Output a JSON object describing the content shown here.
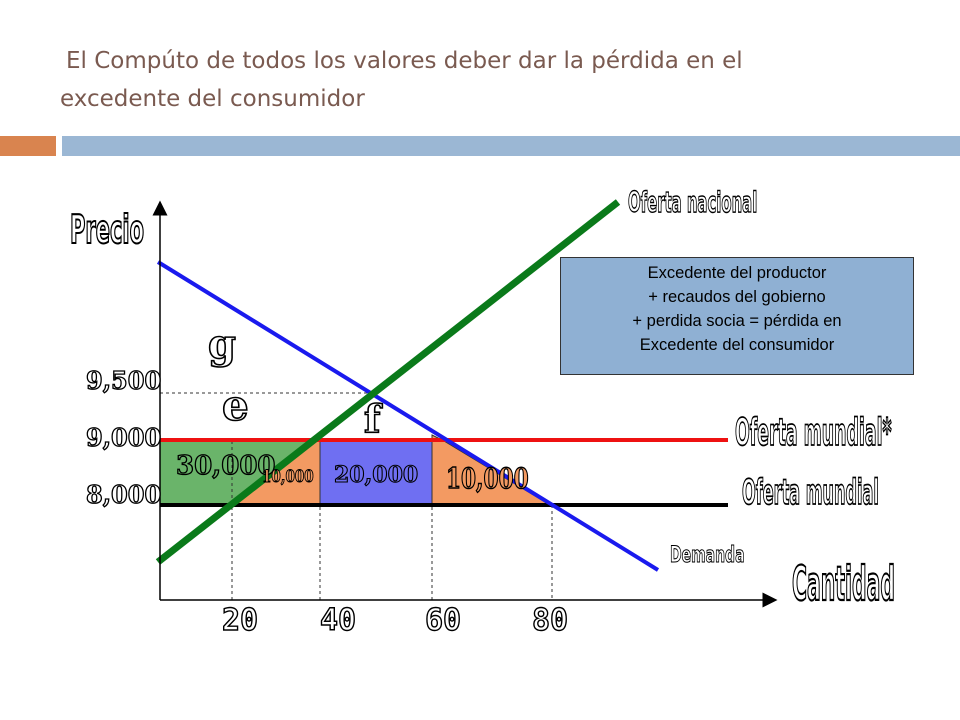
{
  "slide": {
    "title_line1": "El Compúto de  todos los valores deber dar la pérdida en el",
    "title_line2": "excedente del consumidor",
    "accent_colors": {
      "orange": "#d9844f",
      "blue": "#9bb7d4"
    }
  },
  "diagram": {
    "y_axis_label": "Precio",
    "x_axis_label": "Cantidad",
    "price_labels": [
      "9,500",
      "9,000",
      "8,000"
    ],
    "quantity_labels": [
      "20",
      "40",
      "60",
      "80"
    ],
    "curve_labels": {
      "supply_national": "Oferta nacional",
      "world_supply_tariff": "Oferta mundial*",
      "world_supply": "Oferta mundial",
      "demand": "Demanda"
    },
    "area_letters": [
      "g",
      "e",
      "f"
    ],
    "area_values": {
      "green": "30,000",
      "orange_left": "10,000",
      "blue": "20,000",
      "orange_right": "10,000"
    },
    "note_lines": [
      "Excedente del productor",
      "+ recaudos del gobierno",
      "+ perdida socia = pérdida en",
      "Excedente del consumidor"
    ],
    "colors": {
      "supply": "#0a7a1a",
      "demand": "#1a1aee",
      "tariff_line": "#ee1111",
      "world_line": "#000000",
      "green_area": "#6ab46a",
      "orange_area": "#f39a62",
      "blue_area": "#6f6ff2",
      "note_bg": "#8fb0d3"
    }
  }
}
